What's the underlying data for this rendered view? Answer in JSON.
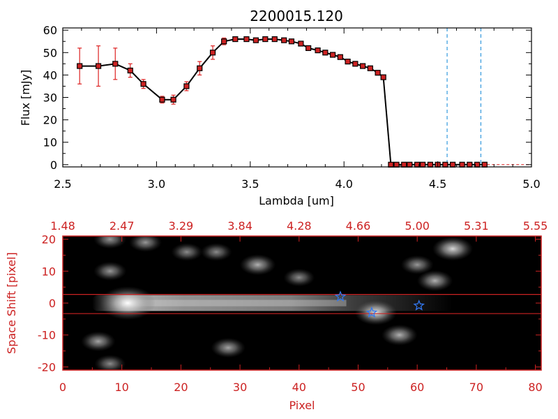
{
  "colors": {
    "spectrum_line": "#000000",
    "marker_fill": "#cc2222",
    "error_bar": "#dd2222",
    "dashed_vertical": "#3399dd",
    "red_frame": "#cc2222",
    "star": "#3377ee",
    "dark_bg": "#000000"
  },
  "chart_data": [
    {
      "type": "line",
      "title": "2200015.120",
      "xlabel": "Lambda [um]",
      "ylabel": "Flux [mJy]",
      "xlim": [
        2.5,
        5.0
      ],
      "ylim": [
        -1,
        61
      ],
      "xticks": [
        "2.5",
        "3.0",
        "3.5",
        "4.0",
        "4.5",
        "5.0"
      ],
      "yticks": [
        "0",
        "10",
        "20",
        "30",
        "40",
        "50",
        "60"
      ],
      "grid": false,
      "series": [
        {
          "x": [
            2.59,
            2.69,
            2.78,
            2.86,
            2.93,
            3.03,
            3.09,
            3.16,
            3.23,
            3.3,
            3.36,
            3.42,
            3.48,
            3.53,
            3.58,
            3.63,
            3.68,
            3.72,
            3.77,
            3.81,
            3.86,
            3.9,
            3.94,
            3.98,
            4.02,
            4.06,
            4.1,
            4.14,
            4.18,
            4.21,
            4.25,
            4.28,
            4.32,
            4.35,
            4.39,
            4.42,
            4.46,
            4.5,
            4.54,
            4.58,
            4.63,
            4.67,
            4.71,
            4.75
          ],
          "y": [
            44,
            44,
            45,
            42,
            36,
            29,
            29,
            35,
            43,
            50,
            55,
            56,
            56,
            55.5,
            56,
            56,
            55.5,
            55,
            54,
            52,
            51,
            50,
            49,
            48,
            46,
            45,
            44,
            43,
            41,
            39,
            0,
            0,
            0,
            0,
            0,
            0,
            0,
            0,
            0,
            0,
            0,
            0,
            0,
            0
          ],
          "err": [
            8,
            9,
            7,
            3,
            2,
            1.5,
            2,
            2,
            3,
            3,
            1.5,
            1,
            1,
            1,
            1,
            1,
            1,
            1,
            1,
            1,
            1,
            1,
            1,
            1,
            1,
            1,
            1,
            1,
            1,
            1,
            0,
            0,
            0,
            0,
            0,
            0,
            0,
            0,
            0,
            0,
            0,
            0,
            0,
            0
          ]
        }
      ],
      "vlines": [
        4.55,
        4.73
      ],
      "hline": 0
    },
    {
      "type": "heatmap",
      "xlabel": "Pixel",
      "ylabel": "Space Shift [pixel]",
      "xlim": [
        0,
        81
      ],
      "ylim": [
        -21,
        21
      ],
      "xticks": [
        "0",
        "10",
        "20",
        "30",
        "40",
        "50",
        "60",
        "70",
        "80"
      ],
      "yticks": [
        "-20",
        "-10",
        "0",
        "10",
        "20"
      ],
      "top_axis_ticks": [
        "1.48",
        "2.47",
        "3.29",
        "3.84",
        "4.28",
        "4.66",
        "5.00",
        "5.31",
        "5.55"
      ],
      "extraction_lines_y": [
        2.7,
        -3.3
      ],
      "stars": [
        {
          "x": 47,
          "y": 2.0
        },
        {
          "x": 52.3,
          "y": -3.0
        },
        {
          "x": 60.3,
          "y": -0.8
        }
      ],
      "blobs": [
        {
          "x": 11,
          "y": 0,
          "peak": 1.0
        },
        {
          "x": 53,
          "y": -3,
          "peak": 0.55
        },
        {
          "x": 66,
          "y": 17,
          "peak": 0.5
        },
        {
          "x": 33,
          "y": 12,
          "peak": 0.35
        },
        {
          "x": 63,
          "y": 7,
          "peak": 0.35
        },
        {
          "x": 57,
          "y": -10,
          "peak": 0.35
        },
        {
          "x": 6,
          "y": -12,
          "peak": 0.3
        },
        {
          "x": 28,
          "y": -14,
          "peak": 0.3
        },
        {
          "x": 8,
          "y": 20,
          "peak": 0.25
        },
        {
          "x": 60,
          "y": 12,
          "peak": 0.25
        },
        {
          "x": 8,
          "y": 10,
          "peak": 0.25
        },
        {
          "x": 14,
          "y": 19,
          "peak": 0.25
        },
        {
          "x": 26,
          "y": 16,
          "peak": 0.2
        },
        {
          "x": 40,
          "y": 8,
          "peak": 0.2
        },
        {
          "x": 21,
          "y": 16,
          "peak": 0.2
        },
        {
          "x": 8,
          "y": -19,
          "peak": 0.2
        }
      ]
    }
  ]
}
